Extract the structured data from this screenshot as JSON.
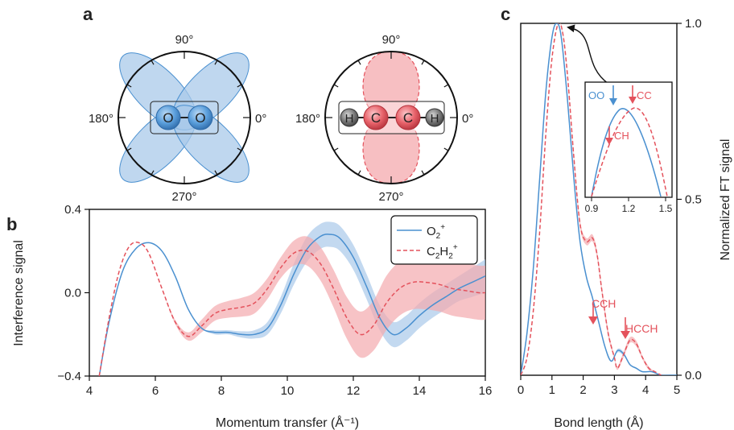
{
  "panel_letters": {
    "a": "a",
    "b": "b",
    "c": "c"
  },
  "panel_a": {
    "angles": {
      "top": "90°",
      "left": "180°",
      "right": "0°",
      "bottom": "270°"
    },
    "o2_atoms": [
      "O",
      "O"
    ],
    "c2h2_atoms": [
      "H",
      "C",
      "C",
      "H"
    ]
  },
  "colors": {
    "blue": "#4a90d0",
    "red": "#e4525c",
    "blue_fill": "#a9c9ea",
    "red_fill": "#f4a9ae"
  },
  "chart_data": [
    {
      "type": "line",
      "panel": "b",
      "xlabel": "Momentum transfer (Å⁻¹)",
      "ylabel": "Interference signal",
      "xlim": [
        4,
        16
      ],
      "ylim": [
        -0.4,
        0.4
      ],
      "xticks": [
        "4",
        "6",
        "8",
        "10",
        "12",
        "14",
        "16"
      ],
      "yticks": [
        "−0.4",
        "0.0",
        "0.4"
      ],
      "legend": "top-right",
      "series": [
        {
          "name": "O2+",
          "label_main": "O",
          "label_sub": "2",
          "label_sup": "+",
          "style": "solid",
          "color": "#4a90d0",
          "x": [
            4.3,
            4.6,
            5.0,
            5.4,
            5.8,
            6.2,
            6.6,
            7.0,
            7.4,
            7.8,
            8.2,
            8.6,
            9.0,
            9.4,
            9.8,
            10.2,
            10.6,
            11.0,
            11.3,
            11.6,
            12.0,
            12.4,
            12.8,
            13.2,
            13.6,
            14.0,
            14.4,
            14.8,
            15.2,
            15.6,
            16.0
          ],
          "y": [
            -0.4,
            -0.14,
            0.1,
            0.21,
            0.24,
            0.2,
            0.08,
            -0.08,
            -0.17,
            -0.19,
            -0.19,
            -0.2,
            -0.2,
            -0.17,
            -0.06,
            0.09,
            0.21,
            0.27,
            0.28,
            0.26,
            0.17,
            0.03,
            -0.12,
            -0.2,
            -0.17,
            -0.11,
            -0.06,
            -0.02,
            0.02,
            0.05,
            0.08
          ],
          "band": [
            0.0,
            0.0,
            0.0,
            0.0,
            0.0,
            0.0,
            0.0,
            0.0,
            0.0,
            0.01,
            0.01,
            0.015,
            0.02,
            0.03,
            0.04,
            0.05,
            0.06,
            0.06,
            0.06,
            0.06,
            0.06,
            0.06,
            0.06,
            0.06,
            0.06,
            0.06,
            0.06,
            0.06,
            0.06,
            0.07,
            0.08
          ]
        },
        {
          "name": "C2H2+",
          "label_main": "C",
          "label_sub": "2",
          "label_main2": "H",
          "label_sub2": "2",
          "label_sup": "+",
          "style": "dashed",
          "color": "#e4525c",
          "x": [
            4.3,
            4.6,
            4.9,
            5.2,
            5.5,
            5.8,
            6.2,
            6.6,
            7.0,
            7.4,
            7.8,
            8.2,
            8.6,
            9.0,
            9.4,
            9.8,
            10.2,
            10.6,
            11.0,
            11.4,
            11.8,
            12.2,
            12.6,
            13.0,
            13.4,
            13.8,
            14.2,
            14.6,
            15.0,
            15.4,
            15.8,
            16.0
          ],
          "y": [
            -0.4,
            -0.12,
            0.1,
            0.22,
            0.24,
            0.19,
            0.02,
            -0.14,
            -0.21,
            -0.16,
            -0.1,
            -0.08,
            -0.07,
            -0.05,
            0.02,
            0.12,
            0.19,
            0.2,
            0.14,
            0.02,
            -0.12,
            -0.2,
            -0.16,
            -0.05,
            0.02,
            0.05,
            0.05,
            0.04,
            0.02,
            0.01,
            0.0,
            0.0
          ],
          "band": [
            0.0,
            0.0,
            0.0,
            0.0,
            0.0,
            0.0,
            0.0,
            0.01,
            0.02,
            0.03,
            0.035,
            0.04,
            0.045,
            0.05,
            0.05,
            0.05,
            0.06,
            0.07,
            0.08,
            0.09,
            0.1,
            0.11,
            0.12,
            0.13,
            0.13,
            0.13,
            0.13,
            0.13,
            0.13,
            0.13,
            0.13,
            0.13
          ]
        }
      ]
    },
    {
      "type": "line",
      "panel": "c",
      "xlabel": "Bond length (Å)",
      "ylabel": "Normalized FT signal",
      "xlim": [
        0,
        5
      ],
      "ylim": [
        0,
        1
      ],
      "xticks": [
        "0",
        "1",
        "2",
        "3",
        "4",
        "5"
      ],
      "yticks": [
        "0.0",
        "0.5",
        "1.0"
      ],
      "series": [
        {
          "name": "O2+",
          "style": "solid",
          "color": "#4a90d0",
          "x": [
            0.0,
            0.2,
            0.4,
            0.6,
            0.8,
            1.0,
            1.15,
            1.3,
            1.5,
            1.7,
            1.9,
            2.1,
            2.3,
            2.5,
            2.7,
            2.9,
            3.1,
            3.3,
            3.5,
            3.7,
            3.9,
            4.2,
            4.5,
            4.8,
            5.0
          ],
          "y": [
            0.0,
            0.12,
            0.3,
            0.55,
            0.8,
            0.96,
            1.0,
            0.96,
            0.78,
            0.56,
            0.38,
            0.28,
            0.22,
            0.15,
            0.08,
            0.04,
            0.07,
            0.06,
            0.03,
            0.02,
            0.01,
            0.01,
            0.0,
            0.0,
            0.0
          ],
          "band": [
            0,
            0,
            0,
            0,
            0,
            0,
            0,
            0,
            0,
            0,
            0,
            0,
            0,
            0,
            0,
            0,
            0.005,
            0.005,
            0,
            0,
            0,
            0,
            0,
            0,
            0
          ]
        },
        {
          "name": "C2H2+",
          "style": "dashed",
          "color": "#e4525c",
          "x": [
            0.0,
            0.2,
            0.4,
            0.6,
            0.8,
            1.0,
            1.2,
            1.35,
            1.5,
            1.7,
            1.9,
            2.1,
            2.3,
            2.45,
            2.6,
            2.8,
            3.0,
            3.1,
            3.3,
            3.5,
            3.7,
            3.9,
            4.1,
            4.3,
            4.5
          ],
          "y": [
            0.0,
            0.05,
            0.18,
            0.4,
            0.68,
            0.9,
            1.0,
            0.97,
            0.85,
            0.62,
            0.43,
            0.38,
            0.39,
            0.34,
            0.24,
            0.12,
            0.05,
            0.02,
            0.06,
            0.1,
            0.09,
            0.05,
            0.02,
            0.01,
            0.0
          ],
          "band": [
            0,
            0,
            0,
            0,
            0,
            0,
            0,
            0.005,
            0.005,
            0.01,
            0.01,
            0.01,
            0.01,
            0.01,
            0.01,
            0.01,
            0.005,
            0.005,
            0.008,
            0.008,
            0.008,
            0.005,
            0.005,
            0,
            0
          ]
        }
      ],
      "annotations": {
        "cch": "CCH",
        "hcch": "HCCH"
      },
      "inset": {
        "xlim": [
          0.9,
          1.5
        ],
        "xticks": [
          "0.9",
          "1.2",
          "1.5"
        ],
        "labels": {
          "oo": "OO",
          "cc": "CC",
          "ch": "CH"
        }
      }
    }
  ]
}
